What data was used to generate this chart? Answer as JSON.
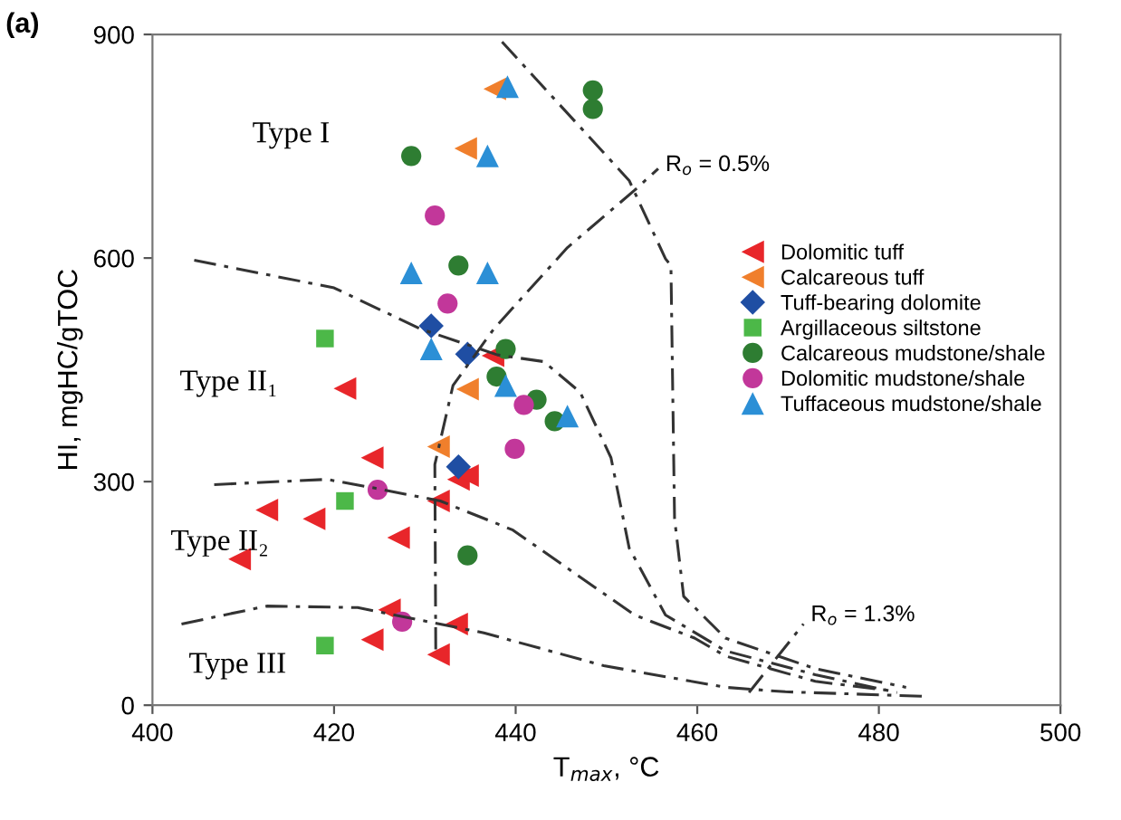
{
  "chart_data": {
    "type": "scatter",
    "title": "(a)",
    "xlabel": "T$_{max}$, °C",
    "ylabel": "HI, mgHC/gTOC",
    "xlim": [
      400,
      500
    ],
    "xticks": [
      400,
      420,
      440,
      460,
      480,
      500
    ],
    "ylim": [
      0,
      900
    ],
    "yticks": [
      0,
      300,
      600,
      900
    ],
    "grid": false,
    "legend": "right",
    "series": [
      {
        "name": "Dolomitic tuff",
        "color": "#e8262a",
        "marker": "triangle_left",
        "x": [
          409.6,
          412.6,
          417.8,
          421.2,
          424.2,
          424.2,
          426.1,
          427.1,
          431.5,
          431.5,
          433.5,
          433.7,
          434.7,
          437.5
        ],
        "values": [
          196,
          262,
          250,
          425,
          332,
          88,
          128,
          225,
          274,
          68,
          109,
          303,
          308,
          469
        ]
      },
      {
        "name": "Calcareous tuff",
        "color": "#f07f2c",
        "marker": "triangle_left",
        "x": [
          437.7,
          434.5,
          434.7,
          431.5
        ],
        "values": [
          827,
          747,
          424,
          347
        ]
      },
      {
        "name": "Tuff-bearing dolomite",
        "color": "#1f4ea3",
        "marker": "diamond",
        "x": [
          430.7,
          434.7,
          433.7
        ],
        "values": [
          509,
          471,
          320
        ]
      },
      {
        "name": "Argillaceous siltstone",
        "color": "#4cb848",
        "marker": "square",
        "x": [
          419,
          421.2,
          419
        ],
        "values": [
          492,
          274,
          80
        ]
      },
      {
        "name": "Calcareous mudstone/shale",
        "color": "#2e7d32",
        "marker": "circle",
        "x": [
          448.5,
          448.5,
          428.5,
          433.7,
          438.9,
          437.9,
          442.3,
          444.3,
          434.7
        ],
        "values": [
          825,
          800,
          737,
          590,
          478,
          441,
          410,
          381,
          201
        ]
      },
      {
        "name": "Dolomitic mudstone/shale",
        "color": "#c2379a",
        "marker": "circle",
        "x": [
          431.1,
          432.5,
          440.9,
          439.9,
          424.8,
          427.5
        ],
        "values": [
          657,
          539,
          403,
          344,
          289,
          112
        ]
      },
      {
        "name": "Tuffaceous mudstone/shale",
        "color": "#2b8fd6",
        "marker": "triangle",
        "x": [
          439.1,
          436.9,
          428.5,
          436.9,
          430.7,
          438.9,
          445.7
        ],
        "values": [
          830,
          737,
          580,
          580,
          478,
          429,
          388
        ]
      },
      {
        "type": "line",
        "color": "#333333",
        "marker": "none",
        "line_style": "dashdot",
        "x": [
          404.6,
          420,
          429.5,
          438,
          443.1,
          447.1,
          450.5,
          452.5,
          456.5,
          463.1,
          473,
          482
        ],
        "values": [
          597,
          560,
          505,
          470,
          461,
          420,
          332,
          211,
          121,
          73,
          41,
          17
        ]
      },
      {
        "type": "line",
        "color": "#333333",
        "marker": "none",
        "line_style": "dashdot",
        "x": [
          406.8,
          419.2,
          424.6,
          431.7,
          439.7,
          446.5,
          453.1,
          459.7,
          463.1,
          473,
          481.6
        ],
        "values": [
          296,
          303,
          291,
          274,
          235,
          177,
          121,
          90,
          66,
          32,
          19
        ]
      },
      {
        "type": "line",
        "color": "#333333",
        "marker": "none",
        "line_style": "dashdot",
        "x": [
          403.2,
          412.6,
          422.6,
          436.5,
          449.7,
          463.1,
          469.7,
          485
        ],
        "values": [
          109,
          133,
          131,
          97,
          53,
          24,
          18,
          12
        ]
      },
      {
        "type": "line",
        "color": "#333333",
        "marker": "none",
        "line_style": "dashdot",
        "x": [
          431.2,
          431.1,
          433.1,
          437.6,
          445.7,
          453.1,
          455.7
        ],
        "values": [
          75,
          323,
          429,
          505,
          614,
          691,
          720
        ]
      },
      {
        "type": "line",
        "color": "#333333",
        "marker": "none",
        "line_style": "dashdot",
        "x": [
          438.5,
          452.5,
          456.5,
          457.1,
          457.5,
          458.5,
          463.1,
          473,
          483
        ],
        "values": [
          890,
          704,
          599,
          590,
          250,
          146,
          90,
          49,
          24
        ]
      },
      {
        "type": "line",
        "color": "#333333",
        "marker": "none",
        "line_style": "dashdot",
        "x": [
          465.7,
          471.7
        ],
        "values": [
          17,
          109
        ]
      }
    ],
    "annotations": [
      "Type I",
      "Type II₁",
      "Type II₂",
      "Type III",
      "R$_{o}$ = 0.5%",
      "R$_{o}$ = 1.3%"
    ]
  }
}
